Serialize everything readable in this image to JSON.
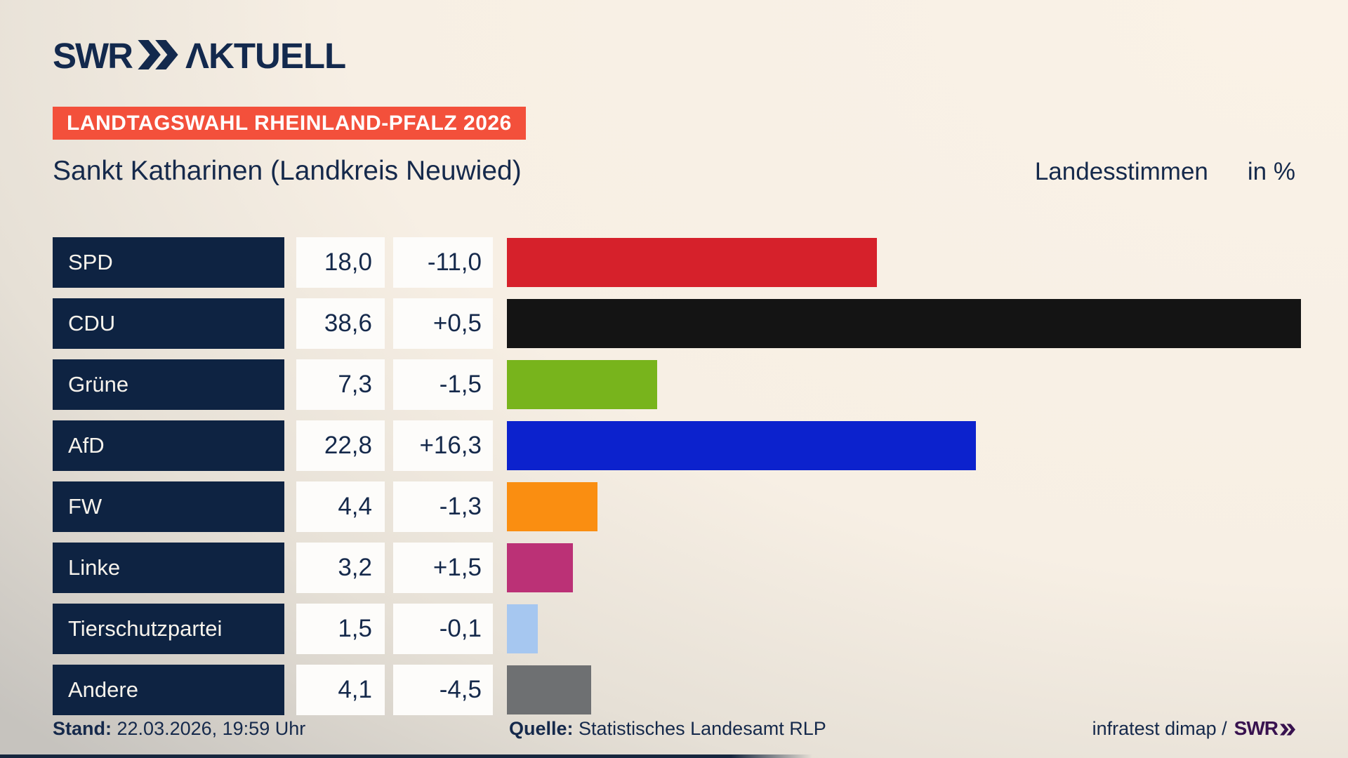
{
  "header": {
    "logo_text": "SWR",
    "logo_suffix": "ΛKTUELL",
    "banner": "LANDTAGSWAHL RHEINLAND-PFALZ 2026"
  },
  "title": {
    "left": "Sankt Katharinen (Landkreis Neuwied)",
    "right": "Landesstimmen",
    "unit": "in %"
  },
  "chart_data": {
    "type": "bar",
    "orientation": "horizontal",
    "title": "Sankt Katharinen (Landkreis Neuwied) — Landesstimmen in %",
    "categories": [
      "SPD",
      "CDU",
      "Grüne",
      "AfD",
      "FW",
      "Linke",
      "Tierschutzpartei",
      "Andere"
    ],
    "values": [
      18.0,
      38.6,
      7.3,
      22.8,
      4.4,
      3.2,
      1.5,
      4.1
    ],
    "changes": [
      -11.0,
      0.5,
      -1.5,
      16.3,
      -1.3,
      1.5,
      -0.1,
      -4.5
    ],
    "value_labels": [
      "18,0",
      "38,6",
      "7,3",
      "22,8",
      "4,4",
      "3,2",
      "1,5",
      "4,1"
    ],
    "change_labels": [
      "-11,0",
      "+0,5",
      "-1,5",
      "+16,3",
      "-1,3",
      "+1,5",
      "-0,1",
      "-4,5"
    ],
    "bar_colors": [
      "#d6212b",
      "#141414",
      "#78b41c",
      "#0c22cd",
      "#fa8e11",
      "#bb3176",
      "#a6c7f0",
      "#6e7072"
    ],
    "xlim": [
      0,
      41
    ],
    "grid": false,
    "legend": "none"
  },
  "colors": {
    "banner_red": "#f3503b",
    "navy": "#13294d",
    "label_box_navy": "#0e2342",
    "value_box_white": "#fdfcfa",
    "footer_logo_purple": "#38124f"
  },
  "footer": {
    "stand_label": "Stand:",
    "stand_value": "22.03.2026, 19:59 Uhr",
    "quelle_label": "Quelle:",
    "quelle_value": "Statistisches Landesamt RLP",
    "credit_text": "infratest dimap /",
    "credit_logo": "SWR"
  }
}
